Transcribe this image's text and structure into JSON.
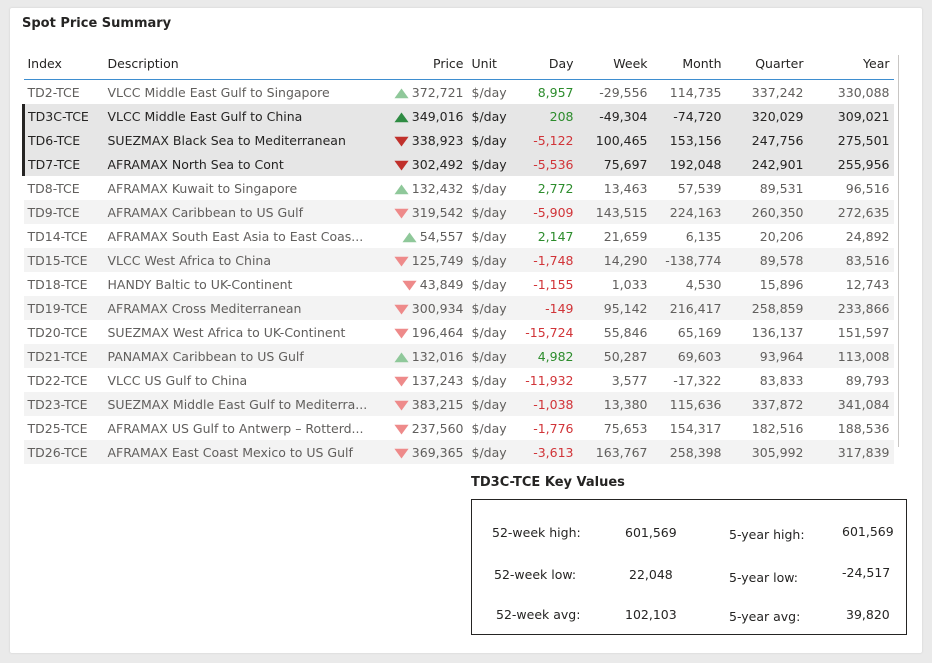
{
  "title": "Spot Price Summary",
  "columns": {
    "index": "Index",
    "description": "Description",
    "price": "Price",
    "unit": "Unit",
    "day": "Day",
    "week": "Week",
    "month": "Month",
    "quarter": "Quarter",
    "year": "Year"
  },
  "rows": [
    {
      "index": "TD2-TCE",
      "description": "VLCC Middle East Gulf to Singapore",
      "trend": "up",
      "price": "372,721",
      "unit": "$/day",
      "day": "8,957",
      "day_sign": "pos",
      "week": "-29,556",
      "month": "114,735",
      "quarter": "337,242",
      "year": "330,088",
      "state": "normal"
    },
    {
      "index": "TD3C-TCE",
      "description": "VLCC Middle East Gulf to China",
      "trend": "up",
      "price": "349,016",
      "unit": "$/day",
      "day": "208",
      "day_sign": "pos",
      "week": "-49,304",
      "month": "-74,720",
      "quarter": "320,029",
      "year": "309,021",
      "state": "selected"
    },
    {
      "index": "TD6-TCE",
      "description": "SUEZMAX Black Sea to Mediterranean",
      "trend": "down",
      "price": "338,923",
      "unit": "$/day",
      "day": "-5,122",
      "day_sign": "neg",
      "week": "100,465",
      "month": "153,156",
      "quarter": "247,756",
      "year": "275,501",
      "state": "selected"
    },
    {
      "index": "TD7-TCE",
      "description": "AFRAMAX North Sea to Cont",
      "trend": "down",
      "price": "302,492",
      "unit": "$/day",
      "day": "-5,536",
      "day_sign": "neg",
      "week": "75,697",
      "month": "192,048",
      "quarter": "242,901",
      "year": "255,956",
      "state": "selected"
    },
    {
      "index": "TD8-TCE",
      "description": "AFRAMAX Kuwait to Singapore",
      "trend": "up",
      "price": "132,432",
      "unit": "$/day",
      "day": "2,772",
      "day_sign": "pos",
      "week": "13,463",
      "month": "57,539",
      "quarter": "89,531",
      "year": "96,516",
      "state": "normal"
    },
    {
      "index": "TD9-TCE",
      "description": "AFRAMAX Caribbean to US Gulf",
      "trend": "down",
      "price": "319,542",
      "unit": "$/day",
      "day": "-5,909",
      "day_sign": "neg",
      "week": "143,515",
      "month": "224,163",
      "quarter": "260,350",
      "year": "272,635",
      "state": "normal"
    },
    {
      "index": "TD14-TCE",
      "description": "AFRAMAX South East Asia to East Coas...",
      "trend": "up",
      "price": "54,557",
      "unit": "$/day",
      "day": "2,147",
      "day_sign": "pos",
      "week": "21,659",
      "month": "6,135",
      "quarter": "20,206",
      "year": "24,892",
      "state": "normal"
    },
    {
      "index": "TD15-TCE",
      "description": "VLCC West Africa to China",
      "trend": "down",
      "price": "125,749",
      "unit": "$/day",
      "day": "-1,748",
      "day_sign": "neg",
      "week": "14,290",
      "month": "-138,774",
      "quarter": "89,578",
      "year": "83,516",
      "state": "normal"
    },
    {
      "index": "TD18-TCE",
      "description": "HANDY Baltic to UK-Continent",
      "trend": "down",
      "price": "43,849",
      "unit": "$/day",
      "day": "-1,155",
      "day_sign": "neg",
      "week": "1,033",
      "month": "4,530",
      "quarter": "15,896",
      "year": "12,743",
      "state": "normal"
    },
    {
      "index": "TD19-TCE",
      "description": "AFRAMAX Cross Mediterranean",
      "trend": "down",
      "price": "300,934",
      "unit": "$/day",
      "day": "-149",
      "day_sign": "neg",
      "week": "95,142",
      "month": "216,417",
      "quarter": "258,859",
      "year": "233,866",
      "state": "normal"
    },
    {
      "index": "TD20-TCE",
      "description": "SUEZMAX West Africa to UK-Continent",
      "trend": "down",
      "price": "196,464",
      "unit": "$/day",
      "day": "-15,724",
      "day_sign": "neg",
      "week": "55,846",
      "month": "65,169",
      "quarter": "136,137",
      "year": "151,597",
      "state": "normal"
    },
    {
      "index": "TD21-TCE",
      "description": "PANAMAX Caribbean to US Gulf",
      "trend": "up",
      "price": "132,016",
      "unit": "$/day",
      "day": "4,982",
      "day_sign": "pos",
      "week": "50,287",
      "month": "69,603",
      "quarter": "93,964",
      "year": "113,008",
      "state": "normal"
    },
    {
      "index": "TD22-TCE",
      "description": "VLCC US Gulf to China",
      "trend": "down",
      "price": "137,243",
      "unit": "$/day",
      "day": "-11,932",
      "day_sign": "neg",
      "week": "3,577",
      "month": "-17,322",
      "quarter": "83,833",
      "year": "89,793",
      "state": "normal"
    },
    {
      "index": "TD23-TCE",
      "description": "SUEZMAX Middle East Gulf to Mediterra...",
      "trend": "down",
      "price": "383,215",
      "unit": "$/day",
      "day": "-1,038",
      "day_sign": "neg",
      "week": "13,380",
      "month": "115,636",
      "quarter": "337,872",
      "year": "341,084",
      "state": "normal"
    },
    {
      "index": "TD25-TCE",
      "description": "AFRAMAX US Gulf to Antwerp – Rotterd...",
      "trend": "down",
      "price": "237,560",
      "unit": "$/day",
      "day": "-1,776",
      "day_sign": "neg",
      "week": "75,653",
      "month": "154,317",
      "quarter": "182,516",
      "year": "188,536",
      "state": "normal"
    },
    {
      "index": "TD26-TCE",
      "description": "AFRAMAX East Coast Mexico to US Gulf",
      "trend": "down",
      "price": "369,365",
      "unit": "$/day",
      "day": "-3,613",
      "day_sign": "neg",
      "week": "163,767",
      "month": "258,398",
      "quarter": "305,992",
      "year": "317,839",
      "state": "normal"
    }
  ],
  "key_values": {
    "title": "TD3C-TCE Key Values",
    "week52_high_label": "52-week high:",
    "week52_high": "601,569",
    "week52_low_label": "52-week low:",
    "week52_low": "22,048",
    "week52_avg_label": "52-week avg:",
    "week52_avg": "102,103",
    "year5_high_label": "5-year high:",
    "year5_high": "601,569",
    "year5_low_label": "5-year low:",
    "year5_low": "-24,517",
    "year5_avg_label": "5-year avg:",
    "year5_avg": "39,820"
  },
  "colors": {
    "up_normal": "#8fc89a",
    "up_selected": "#2e8b43",
    "down_normal": "#ee8a8a",
    "down_selected": "#c0302b",
    "positive_text": "#2c8c2c",
    "negative_text": "#d13438",
    "header_rule": "#3e8ed0"
  }
}
